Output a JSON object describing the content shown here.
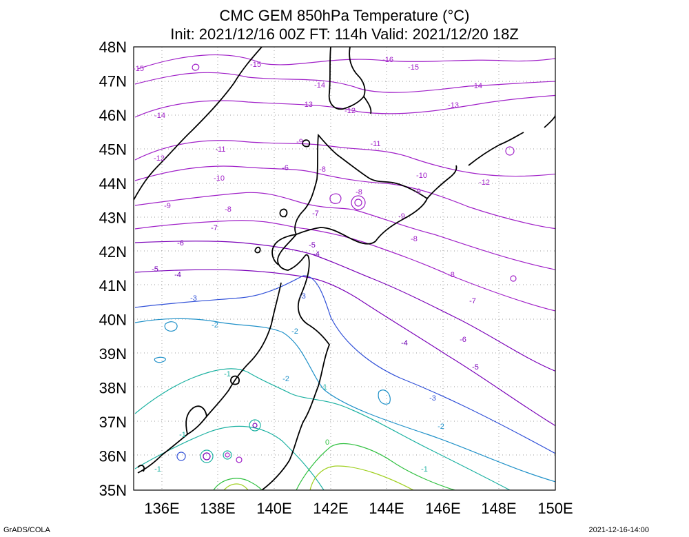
{
  "title": {
    "line1": "CMC GEM 850hPa Temperature (°C)",
    "line2": "Init: 2021/12/16 00Z  FT: 114h  Valid: 2021/12/20 18Z"
  },
  "footer": {
    "left": "GrADS/COLA",
    "right": "2021-12-16-14:00"
  },
  "map": {
    "lat_labels": [
      "48N",
      "47N",
      "46N",
      "45N",
      "44N",
      "43N",
      "42N",
      "41N",
      "40N",
      "39N",
      "38N",
      "37N",
      "36N",
      "35N"
    ],
    "lon_labels": [
      "136E",
      "138E",
      "140E",
      "142E",
      "144E",
      "146E",
      "148E",
      "150E"
    ],
    "contour_labels": [
      {
        "text": "-16",
        "color": "#a020c8"
      },
      {
        "text": "-15",
        "color": "#a020c8"
      },
      {
        "text": "-15",
        "color": "#a020c8"
      },
      {
        "text": "-15",
        "color": "#a020c8"
      },
      {
        "text": "-14",
        "color": "#a020c8"
      },
      {
        "text": "-14",
        "color": "#a020c8"
      },
      {
        "text": "-14",
        "color": "#a020c8"
      },
      {
        "text": "-13",
        "color": "#a020c8"
      },
      {
        "text": "-13",
        "color": "#a020c8"
      },
      {
        "text": "-12",
        "color": "#a020c8"
      },
      {
        "text": "-12",
        "color": "#a020c8"
      },
      {
        "text": "-12",
        "color": "#a020c8"
      },
      {
        "text": "-11",
        "color": "#a020c8"
      },
      {
        "text": "-11",
        "color": "#a020c8"
      },
      {
        "text": "-10",
        "color": "#a020c8"
      },
      {
        "text": "-10",
        "color": "#a020c8"
      },
      {
        "text": "-9",
        "color": "#a020c8"
      },
      {
        "text": "-9",
        "color": "#a020c8"
      },
      {
        "text": "-9",
        "color": "#a020c8"
      },
      {
        "text": "-9",
        "color": "#a020c8"
      },
      {
        "text": "-8",
        "color": "#a020c8"
      },
      {
        "text": "-8",
        "color": "#a020c8"
      },
      {
        "text": "-8",
        "color": "#a020c8"
      },
      {
        "text": "-8",
        "color": "#a020c8"
      },
      {
        "text": "-8",
        "color": "#a020c8"
      },
      {
        "text": "-7",
        "color": "#8a10c0"
      },
      {
        "text": "-7",
        "color": "#8a10c0"
      },
      {
        "text": "-7",
        "color": "#8a10c0"
      },
      {
        "text": "-6",
        "color": "#8a10c0"
      },
      {
        "text": "-6",
        "color": "#8a10c0"
      },
      {
        "text": "-6",
        "color": "#8a10c0"
      },
      {
        "text": "-5",
        "color": "#7a00b8"
      },
      {
        "text": "-5",
        "color": "#7a00b8"
      },
      {
        "text": "-5",
        "color": "#7a00b8"
      },
      {
        "text": "-4",
        "color": "#6a00b0"
      },
      {
        "text": "-4",
        "color": "#6a00b0"
      },
      {
        "text": "-4",
        "color": "#6a00b0"
      },
      {
        "text": "-3",
        "color": "#3050d8"
      },
      {
        "text": "-3",
        "color": "#3050d8"
      },
      {
        "text": "-3",
        "color": "#3050d8"
      },
      {
        "text": "-2",
        "color": "#1e90c8"
      },
      {
        "text": "-2",
        "color": "#1e90c8"
      },
      {
        "text": "-2",
        "color": "#1e90c8"
      },
      {
        "text": "-2",
        "color": "#1e90c8"
      },
      {
        "text": "-1",
        "color": "#18b0a0"
      },
      {
        "text": "-1",
        "color": "#18b0a0"
      },
      {
        "text": "-1",
        "color": "#18b0a0"
      },
      {
        "text": "-1",
        "color": "#18b0a0"
      },
      {
        "text": "-1",
        "color": "#18b0a0"
      },
      {
        "text": "0",
        "color": "#30c040"
      }
    ]
  }
}
